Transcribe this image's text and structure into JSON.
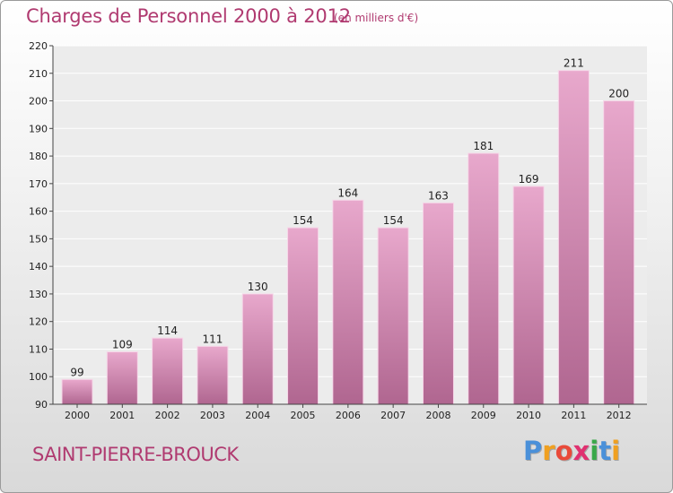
{
  "header": {
    "title": "Charges de Personnel 2000 à 2012",
    "subtitle": "(en milliers d'€)"
  },
  "footer": {
    "city": "SAINT-PIERRE-BROUCK",
    "logo": [
      "P",
      "r",
      "o",
      "x",
      "i",
      "t",
      "i"
    ]
  },
  "colors": {
    "title": "#b03a70",
    "bar_top": "#e8a8cc",
    "bar_bottom": "#b06690",
    "logo": [
      "#4a90d9",
      "#f0a020",
      "#e94a3a",
      "#e03070",
      "#39a849",
      "#4a90d9",
      "#f0a020"
    ]
  },
  "chart_data": {
    "type": "bar",
    "title": "Charges de Personnel 2000 à 2012",
    "categories": [
      "2000",
      "2001",
      "2002",
      "2003",
      "2004",
      "2005",
      "2006",
      "2007",
      "2008",
      "2009",
      "2010",
      "2011",
      "2012"
    ],
    "values": [
      99,
      109,
      114,
      111,
      130,
      154,
      164,
      154,
      163,
      181,
      169,
      211,
      200
    ],
    "ylim": [
      90,
      220
    ],
    "yticks": [
      90,
      100,
      110,
      120,
      130,
      140,
      150,
      160,
      170,
      180,
      190,
      200,
      210,
      220
    ],
    "grid": true,
    "data_labels": true
  }
}
